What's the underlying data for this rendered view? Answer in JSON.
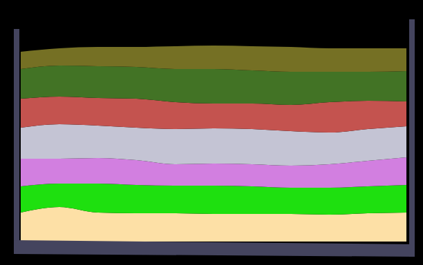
{
  "chart_data": {
    "type": "area",
    "stacked": true,
    "tick_labels": false,
    "x": [
      0,
      1,
      2,
      3,
      4,
      5,
      6,
      7,
      8,
      9,
      10
    ],
    "xlim": [
      0,
      10
    ],
    "ylim": [
      0,
      290
    ],
    "series": [
      {
        "color": "#fde0a6",
        "values": [
          42,
          50,
          42,
          41,
          41,
          40,
          40,
          40,
          39,
          41,
          42
        ]
      },
      {
        "color": "#1ee00f",
        "values": [
          38,
          34,
          42,
          41,
          40,
          41,
          40,
          38,
          39,
          39,
          40
        ]
      },
      {
        "color": "#d27fe0",
        "values": [
          40,
          36,
          37,
          36,
          31,
          32,
          32,
          32,
          34,
          37,
          40
        ]
      },
      {
        "color": "#c4c4d4",
        "values": [
          45,
          50,
          47,
          47,
          51,
          51,
          51,
          50,
          46,
          46,
          45
        ]
      },
      {
        "color": "#c4534f",
        "values": [
          42,
          40,
          40,
          42,
          39,
          36,
          37,
          38,
          44,
          41,
          36
        ]
      },
      {
        "color": "#427325",
        "values": [
          43,
          45,
          46,
          46,
          48,
          50,
          48,
          48,
          44,
          42,
          44
        ]
      },
      {
        "color": "#757024",
        "values": [
          25,
          25,
          28,
          29,
          33,
          34,
          35,
          36,
          34,
          34,
          33
        ]
      }
    ]
  }
}
